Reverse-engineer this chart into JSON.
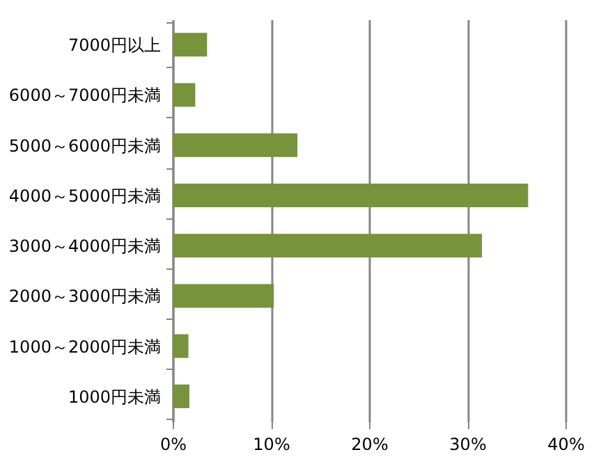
{
  "chart_data": {
    "type": "bar",
    "orientation": "horizontal",
    "categories": [
      "7000円以上",
      "6000～7000円未満",
      "5000～6000円未満",
      "4000～5000円未満",
      "3000～4000円未満",
      "2000～3000円未満",
      "1000～2000円未満",
      "1000円未満"
    ],
    "values": [
      3.5,
      2.3,
      12.7,
      36.2,
      31.5,
      10.3,
      1.6,
      1.7
    ],
    "color": "#77933c",
    "xlim": [
      0,
      40
    ],
    "xticks": [
      {
        "value": 0,
        "label": "0%"
      },
      {
        "value": 10,
        "label": "10%"
      },
      {
        "value": 20,
        "label": "20%"
      },
      {
        "value": 30,
        "label": "30%"
      },
      {
        "value": 40,
        "label": "40%"
      }
    ],
    "grid": "x"
  }
}
